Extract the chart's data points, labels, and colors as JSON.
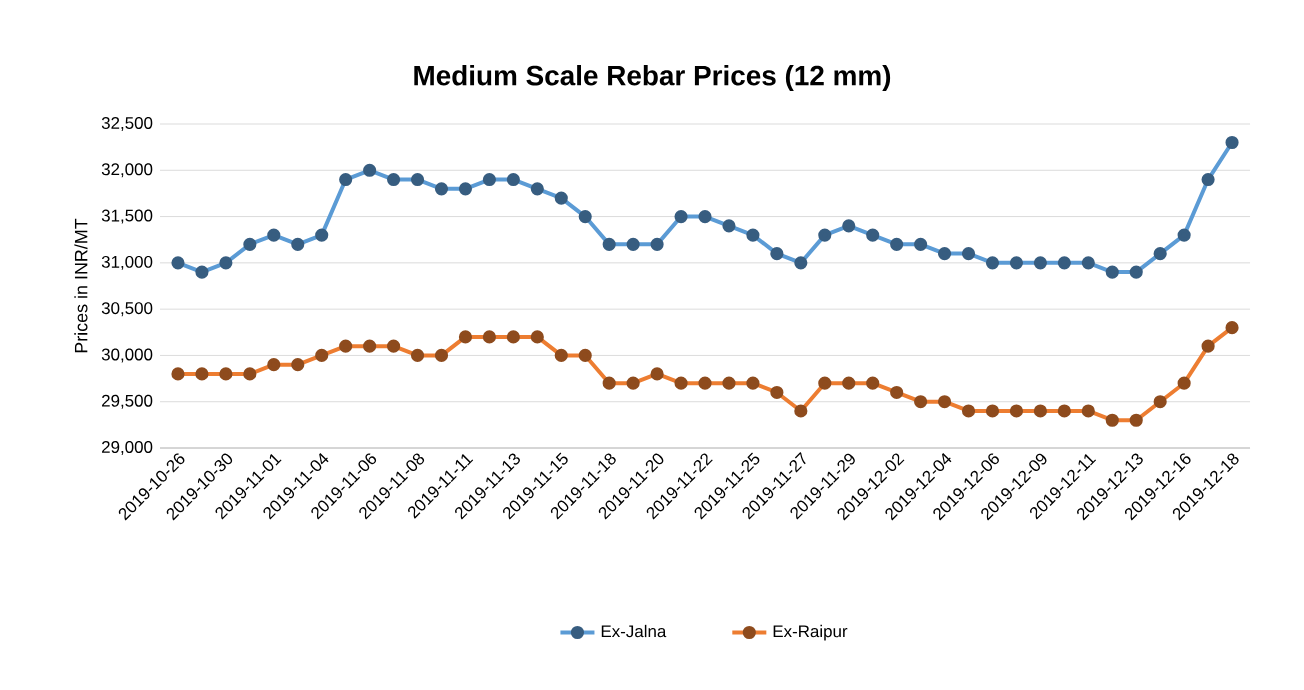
{
  "chart_data": {
    "type": "line",
    "title": "Medium Scale Rebar Prices (12 mm)",
    "ylabel": "Prices in INR/MT",
    "categories": [
      "2019-10-26",
      null,
      "2019-10-30",
      null,
      "2019-11-01",
      null,
      "2019-11-04",
      null,
      "2019-11-06",
      null,
      "2019-11-08",
      null,
      "2019-11-11",
      null,
      "2019-11-13",
      null,
      "2019-11-15",
      null,
      "2019-11-18",
      null,
      "2019-11-20",
      null,
      "2019-11-22",
      null,
      "2019-11-25",
      null,
      "2019-11-27",
      null,
      "2019-11-29",
      null,
      "2019-12-02",
      null,
      "2019-12-04",
      null,
      "2019-12-06",
      null,
      "2019-12-09",
      null,
      "2019-12-11",
      null,
      "2019-12-13",
      null,
      "2019-12-16",
      null,
      "2019-12-18"
    ],
    "series": [
      {
        "name": "Ex-Jalna",
        "color": "#5b9bd5",
        "values": [
          31000,
          30900,
          31000,
          31200,
          31300,
          31200,
          31300,
          31900,
          32000,
          31900,
          31900,
          31800,
          31800,
          31900,
          31900,
          31800,
          31700,
          31500,
          31200,
          31200,
          31200,
          31500,
          31500,
          31400,
          31300,
          31100,
          31000,
          31300,
          31400,
          31300,
          31200,
          31200,
          31100,
          31100,
          31000,
          31000,
          31000,
          31000,
          31000,
          30900,
          30900,
          31100,
          31300,
          31900,
          32300
        ]
      },
      {
        "name": "Ex-Raipur",
        "color": "#ed7d31",
        "values": [
          29800,
          29800,
          29800,
          29800,
          29900,
          29900,
          30000,
          30100,
          30100,
          30100,
          30000,
          30000,
          30200,
          30200,
          30200,
          30200,
          30000,
          30000,
          29700,
          29700,
          29800,
          29700,
          29700,
          29700,
          29700,
          29600,
          29400,
          29700,
          29700,
          29700,
          29600,
          29500,
          29500,
          29400,
          29400,
          29400,
          29400,
          29400,
          29400,
          29300,
          29300,
          29500,
          29700,
          30100,
          30300
        ]
      }
    ],
    "ylim": [
      29000,
      32500
    ],
    "yticks": [
      {
        "value": 29000,
        "label": "29,000"
      },
      {
        "value": 29500,
        "label": "29,500"
      },
      {
        "value": 30000,
        "label": "30,000"
      },
      {
        "value": 30500,
        "label": "30,500"
      },
      {
        "value": 31000,
        "label": "31,000"
      },
      {
        "value": 31500,
        "label": "31,500"
      },
      {
        "value": 32000,
        "label": "32,000"
      },
      {
        "value": 32500,
        "label": "32,500"
      }
    ],
    "grid": "y",
    "legend": "bottom",
    "marker": "circle",
    "line_style": "solid"
  }
}
